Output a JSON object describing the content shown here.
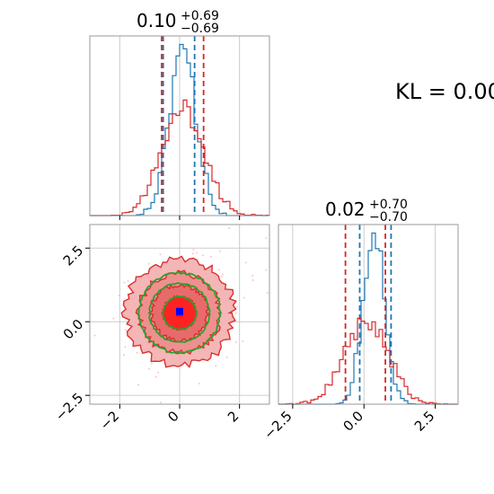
{
  "colors": {
    "blue": "#1f77b4",
    "red": "#d62728",
    "green": "#2ca02c",
    "red_fill": "#f08080",
    "grid": "#cccccc",
    "marker_blue": "#0000ff",
    "marker_red": "#ff0000",
    "axes": "#999999"
  },
  "annotation": {
    "kl_text": "KL = 0.00"
  },
  "chart_data": [
    {
      "type": "histogram",
      "panel": "top-left",
      "param_index": 0,
      "title_median": "0.10",
      "title_plus": "+0.69",
      "title_minus": "−0.69",
      "xlim": [
        -3.0,
        3.0
      ],
      "x_ticks": [
        -2,
        0,
        2
      ],
      "grid": true,
      "series": [
        {
          "name": "",
          "color": "#1f77b4",
          "mean": 0.1,
          "sd": 0.45,
          "seed": 7,
          "quantile_lines": [
            -0.55,
            0.5
          ]
        },
        {
          "name": "",
          "color": "#d62728",
          "mean": 0.1,
          "sd": 0.7,
          "seed": 13,
          "quantile_lines": [
            -0.6,
            0.8
          ]
        }
      ]
    },
    {
      "type": "histogram",
      "panel": "bottom-right",
      "param_index": 1,
      "title_median": "0.02",
      "title_plus": "+0.70",
      "title_minus": "−0.70",
      "xlim": [
        -3.0,
        3.3
      ],
      "x_ticks": [
        -2.5,
        0.0,
        2.5
      ],
      "x_tick_labels": [
        "−2.5",
        "0.0",
        "2.5"
      ],
      "grid": true,
      "series": [
        {
          "name": "",
          "color": "#1f77b4",
          "mean": 0.35,
          "sd": 0.38,
          "seed": 21,
          "quantile_lines": [
            -0.15,
            0.95
          ]
        },
        {
          "name": "",
          "color": "#d62728",
          "mean": 0.1,
          "sd": 0.75,
          "seed": 33,
          "quantile_lines": [
            -0.65,
            0.75
          ]
        }
      ]
    },
    {
      "type": "contour",
      "panel": "bottom-left",
      "xlim": [
        -3.0,
        3.0
      ],
      "ylim": [
        -2.8,
        3.3
      ],
      "x_ticks": [
        -2,
        0,
        2
      ],
      "x_tick_labels": [
        "−2",
        "0",
        "2"
      ],
      "y_ticks": [
        -2.5,
        0.0,
        2.5
      ],
      "y_tick_labels": [
        "−2.5",
        "0.0",
        "2.5"
      ],
      "grid": true,
      "red_levels_sd": [
        0.55,
        0.95,
        1.35,
        1.8
      ],
      "green_levels_sd": [
        0.55,
        1.0,
        1.35
      ],
      "center": [
        0.0,
        0.3
      ],
      "markers": {
        "blue": [
          0.0,
          0.35
        ],
        "red": [
          0.0,
          0.3
        ]
      }
    }
  ]
}
